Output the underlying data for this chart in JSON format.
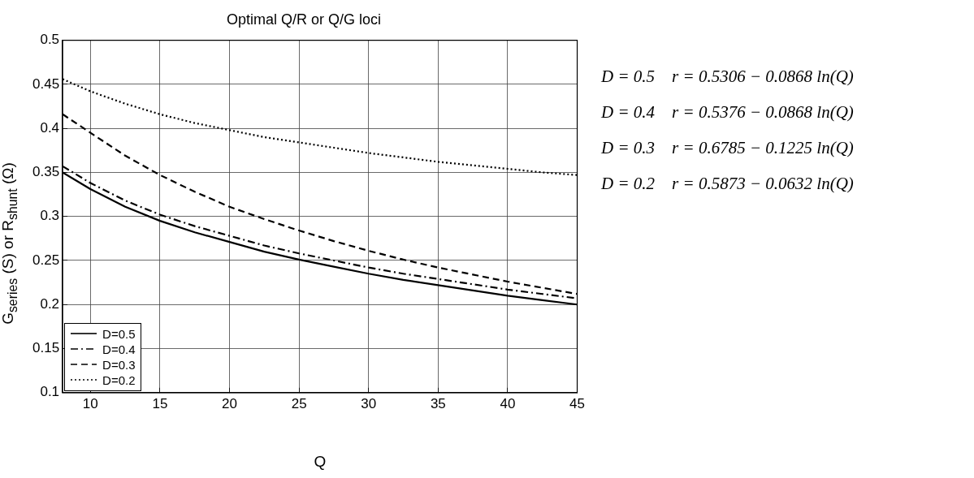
{
  "chart_data": {
    "type": "line",
    "title": "Optimal Q/R or Q/G loci",
    "xlabel": "Q",
    "ylabel": "G$_{series}$ (S) or R$_{shunt}$ (Ω)",
    "x": [
      8,
      10,
      12.5,
      15,
      17.5,
      20,
      22.5,
      25,
      27.5,
      30,
      32.5,
      35,
      37.5,
      40,
      42.5,
      45
    ],
    "series": [
      {
        "name": "D=0.5",
        "color": "#000000",
        "line_style": "solid",
        "values": [
          0.35,
          0.331,
          0.311,
          0.295,
          0.282,
          0.271,
          0.26,
          0.251,
          0.243,
          0.235,
          0.228,
          0.222,
          0.216,
          0.21,
          0.205,
          0.2
        ]
      },
      {
        "name": "D=0.4",
        "color": "#000000",
        "line_style": "dashdot",
        "values": [
          0.357,
          0.338,
          0.318,
          0.302,
          0.289,
          0.278,
          0.267,
          0.258,
          0.25,
          0.242,
          0.235,
          0.229,
          0.223,
          0.217,
          0.212,
          0.207
        ]
      },
      {
        "name": "D=0.3",
        "color": "#000000",
        "line_style": "dashed",
        "values": [
          0.416,
          0.395,
          0.369,
          0.347,
          0.328,
          0.311,
          0.297,
          0.284,
          0.272,
          0.261,
          0.251,
          0.242,
          0.234,
          0.226,
          0.219,
          0.212
        ]
      },
      {
        "name": "D=0.2",
        "color": "#000000",
        "line_style": "dotted",
        "values": [
          0.456,
          0.442,
          0.428,
          0.416,
          0.406,
          0.398,
          0.39,
          0.384,
          0.378,
          0.372,
          0.367,
          0.362,
          0.358,
          0.354,
          0.35,
          0.347
        ]
      }
    ],
    "xlim": [
      8,
      45
    ],
    "xticks": [
      10,
      15,
      20,
      25,
      30,
      35,
      40,
      45
    ],
    "ylim": [
      0.1,
      0.5
    ],
    "yticks": [
      0.1,
      0.15,
      0.2,
      0.25,
      0.3,
      0.35,
      0.4,
      0.45,
      0.5
    ],
    "grid": true,
    "legend": "bottom left",
    "marker": "none",
    "annotations": [
      "D = 0.5    r = 0.5306 − 0.0868 ln(Q)",
      "D = 0.4    r = 0.5376 − 0.0868 ln(Q)",
      "D = 0.3    r = 0.6785 − 0.1225 ln(Q)",
      "D = 0.2    r = 0.5873 − 0.0632 ln(Q)"
    ]
  }
}
